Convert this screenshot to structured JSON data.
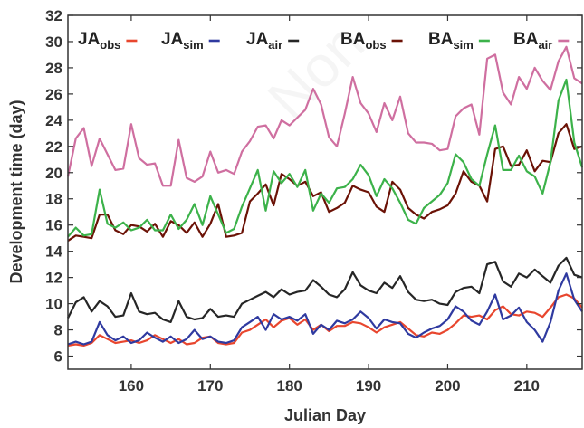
{
  "chart_data": {
    "type": "line",
    "title": "",
    "xlabel": "Julian Day",
    "ylabel": "Development time (day)",
    "xlim": [
      152,
      217
    ],
    "ylim": [
      5,
      32
    ],
    "xticks": [
      160,
      170,
      180,
      190,
      200,
      210
    ],
    "yticks": [
      6,
      8,
      10,
      12,
      14,
      16,
      18,
      20,
      22,
      24,
      26,
      28,
      30,
      32
    ],
    "grid": false,
    "legend_position": "top",
    "watermark": "Non",
    "x": [
      152,
      153,
      154,
      155,
      156,
      157,
      158,
      159,
      160,
      161,
      162,
      163,
      164,
      165,
      166,
      167,
      168,
      169,
      170,
      171,
      172,
      173,
      174,
      175,
      176,
      177,
      178,
      179,
      180,
      181,
      182,
      183,
      184,
      185,
      186,
      187,
      188,
      189,
      190,
      191,
      192,
      193,
      194,
      195,
      196,
      197,
      198,
      199,
      200,
      201,
      202,
      203,
      204,
      205,
      206,
      207,
      208,
      209,
      210,
      211,
      212,
      213,
      214,
      215,
      216,
      217
    ],
    "series": [
      {
        "name": "JA",
        "sub": "obs",
        "color": "#e8462e",
        "values": [
          6.8,
          6.9,
          6.8,
          7.0,
          7.6,
          7.3,
          7.0,
          7.1,
          7.2,
          7.0,
          7.2,
          7.6,
          7.3,
          7.0,
          7.3,
          6.9,
          7.0,
          7.4,
          7.5,
          7.0,
          6.9,
          7.0,
          7.8,
          8.0,
          8.4,
          8.8,
          8.2,
          8.7,
          8.9,
          8.4,
          8.8,
          8.0,
          8.4,
          7.9,
          8.3,
          8.3,
          8.6,
          8.5,
          8.2,
          7.8,
          8.2,
          8.4,
          8.6,
          8.1,
          7.6,
          7.5,
          7.8,
          7.7,
          8.0,
          8.5,
          9.1,
          9.0,
          9.1,
          8.8,
          9.5,
          9.8,
          9.2,
          9.1,
          9.4,
          9.3,
          9.0,
          9.7,
          10.5,
          10.7,
          10.4,
          9.7
        ]
      },
      {
        "name": "JA",
        "sub": "sim",
        "color": "#2f3aa0",
        "values": [
          6.9,
          7.1,
          6.9,
          7.1,
          8.6,
          7.6,
          7.2,
          7.5,
          7.0,
          7.2,
          7.8,
          7.4,
          7.1,
          7.5,
          7.0,
          7.3,
          8.0,
          7.3,
          7.5,
          7.1,
          7.0,
          7.2,
          8.2,
          8.6,
          9.0,
          8.0,
          9.2,
          8.8,
          9.0,
          8.7,
          9.2,
          7.7,
          8.4,
          8.0,
          8.7,
          8.5,
          8.8,
          9.4,
          8.9,
          8.1,
          8.8,
          8.6,
          8.5,
          7.7,
          7.4,
          7.8,
          8.1,
          8.3,
          8.8,
          9.8,
          9.4,
          8.7,
          8.4,
          9.4,
          10.7,
          8.8,
          9.1,
          9.7,
          8.6,
          8.0,
          7.1,
          8.6,
          11.0,
          12.3,
          10.3,
          9.4
        ]
      },
      {
        "name": "JA",
        "sub": "air",
        "color": "#262626",
        "values": [
          8.9,
          10.1,
          10.5,
          9.4,
          10.2,
          9.8,
          9.0,
          9.1,
          10.8,
          9.4,
          9.2,
          9.3,
          8.8,
          8.6,
          10.2,
          9.0,
          8.8,
          8.9,
          9.6,
          9.0,
          9.1,
          9.0,
          10.0,
          10.3,
          10.6,
          10.9,
          10.5,
          11.1,
          10.7,
          10.9,
          11.0,
          11.8,
          11.3,
          10.7,
          10.5,
          11.1,
          12.4,
          11.4,
          11.0,
          10.8,
          11.6,
          11.2,
          12.1,
          10.9,
          10.3,
          10.2,
          10.3,
          10.0,
          9.9,
          10.9,
          11.2,
          11.3,
          10.8,
          13.0,
          13.2,
          11.7,
          11.3,
          12.3,
          12.0,
          12.6,
          12.1,
          11.6,
          12.9,
          13.5,
          12.2,
          12.0
        ]
      },
      {
        "name": "BA",
        "sub": "obs",
        "color": "#6b1206",
        "values": [
          14.8,
          15.2,
          15.1,
          15.0,
          16.8,
          16.8,
          15.6,
          15.3,
          16.0,
          15.9,
          15.5,
          16.1,
          15.1,
          16.3,
          16.0,
          15.4,
          16.2,
          15.1,
          16.1,
          17.6,
          15.1,
          15.2,
          15.4,
          17.8,
          18.4,
          19.1,
          17.5,
          19.9,
          19.5,
          19.0,
          19.3,
          18.2,
          18.5,
          17.0,
          17.3,
          17.7,
          19.0,
          18.7,
          18.5,
          17.4,
          17.0,
          19.3,
          18.7,
          17.3,
          16.8,
          16.5,
          17.0,
          17.2,
          17.5,
          18.4,
          20.1,
          19.3,
          19.0,
          17.8,
          21.8,
          22.0,
          20.5,
          20.6,
          21.7,
          20.1,
          20.9,
          20.8,
          23.0,
          23.7,
          21.8,
          22.0
        ]
      },
      {
        "name": "BA",
        "sub": "sim",
        "color": "#3cb24a",
        "values": [
          15.1,
          15.8,
          15.2,
          15.3,
          18.7,
          16.1,
          15.8,
          16.2,
          15.6,
          15.8,
          16.4,
          15.6,
          15.6,
          16.8,
          15.7,
          16.4,
          17.6,
          16.0,
          18.2,
          16.8,
          15.4,
          15.7,
          17.4,
          18.8,
          20.2,
          17.1,
          20.1,
          19.2,
          19.9,
          18.9,
          20.2,
          17.1,
          18.4,
          17.7,
          18.8,
          18.9,
          19.5,
          20.6,
          19.8,
          18.2,
          19.5,
          18.8,
          17.7,
          16.4,
          16.1,
          17.3,
          17.8,
          18.3,
          19.2,
          21.4,
          20.8,
          19.5,
          19.0,
          21.4,
          23.6,
          20.2,
          20.2,
          21.3,
          20.1,
          19.7,
          18.4,
          20.8,
          25.5,
          27.1,
          22.3,
          20.4
        ]
      },
      {
        "name": "BA",
        "sub": "air",
        "color": "#cf6fa0",
        "values": [
          19.7,
          22.6,
          23.4,
          20.5,
          22.6,
          21.4,
          20.2,
          20.3,
          23.7,
          21.1,
          20.6,
          20.7,
          19.0,
          19.0,
          22.5,
          19.6,
          19.3,
          19.7,
          21.6,
          20.0,
          20.2,
          19.9,
          21.6,
          22.4,
          23.5,
          23.6,
          22.6,
          24.0,
          23.6,
          24.2,
          24.8,
          26.4,
          25.2,
          22.7,
          22.0,
          24.5,
          27.3,
          25.3,
          24.5,
          23.1,
          25.3,
          24.0,
          25.8,
          23.0,
          22.3,
          22.3,
          22.2,
          21.7,
          21.8,
          24.3,
          24.9,
          25.2,
          22.9,
          28.7,
          29.0,
          26.1,
          25.2,
          27.3,
          26.4,
          28.0,
          27.0,
          26.3,
          28.5,
          29.6,
          27.2,
          26.8
        ]
      }
    ]
  }
}
